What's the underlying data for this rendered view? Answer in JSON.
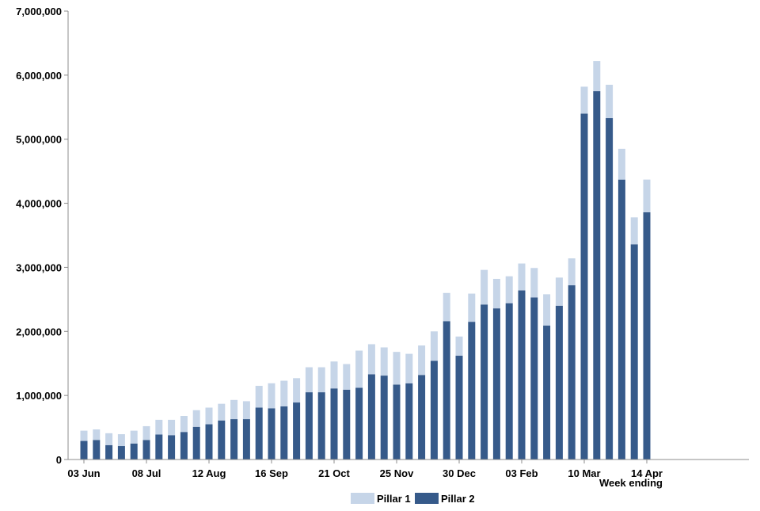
{
  "chart_data": {
    "type": "bar",
    "stacked": true,
    "xlabel": "Week ending",
    "ylabel": "",
    "ylim": [
      0,
      7000000
    ],
    "yticks": [
      0,
      1000000,
      2000000,
      3000000,
      4000000,
      5000000,
      6000000,
      7000000
    ],
    "ytick_labels": [
      "0",
      "1,000,000",
      "2,000,000",
      "3,000,000",
      "4,000,000",
      "5,000,000",
      "6,000,000",
      "7,000,000"
    ],
    "xtick_labels": [
      {
        "label": "03 Jun",
        "index": 0
      },
      {
        "label": "08 Jul",
        "index": 5
      },
      {
        "label": "12 Aug",
        "index": 10
      },
      {
        "label": "16 Sep",
        "index": 15
      },
      {
        "label": "21 Oct",
        "index": 20
      },
      {
        "label": "25 Nov",
        "index": 25
      },
      {
        "label": "30 Dec",
        "index": 30
      },
      {
        "label": "03 Feb",
        "index": 35
      },
      {
        "label": "10 Mar",
        "index": 40
      },
      {
        "label": "14 Apr",
        "index": 45
      }
    ],
    "grid": false,
    "legend_position": "bottom",
    "series": [
      {
        "name": "Pillar 2",
        "color": "#365a8a",
        "values": [
          290000,
          305000,
          225000,
          210000,
          250000,
          305000,
          390000,
          380000,
          430000,
          510000,
          550000,
          610000,
          630000,
          630000,
          810000,
          800000,
          830000,
          890000,
          1050000,
          1050000,
          1110000,
          1090000,
          1120000,
          1330000,
          1310000,
          1170000,
          1190000,
          1320000,
          1540000,
          2160000,
          1620000,
          2150000,
          2420000,
          2360000,
          2440000,
          2640000,
          2530000,
          2090000,
          2400000,
          2720000,
          5400000,
          5750000,
          5330000,
          4370000,
          3360000,
          3860000
        ]
      },
      {
        "name": "Pillar 1",
        "color": "#c6d5e8",
        "values": [
          160000,
          165000,
          185000,
          185000,
          200000,
          215000,
          230000,
          240000,
          250000,
          260000,
          260000,
          260000,
          300000,
          280000,
          340000,
          390000,
          400000,
          380000,
          390000,
          390000,
          420000,
          400000,
          580000,
          470000,
          440000,
          510000,
          460000,
          460000,
          460000,
          440000,
          300000,
          440000,
          540000,
          460000,
          420000,
          420000,
          460000,
          490000,
          440000,
          420000,
          420000,
          470000,
          520000,
          480000,
          420000,
          510000
        ]
      }
    ]
  }
}
